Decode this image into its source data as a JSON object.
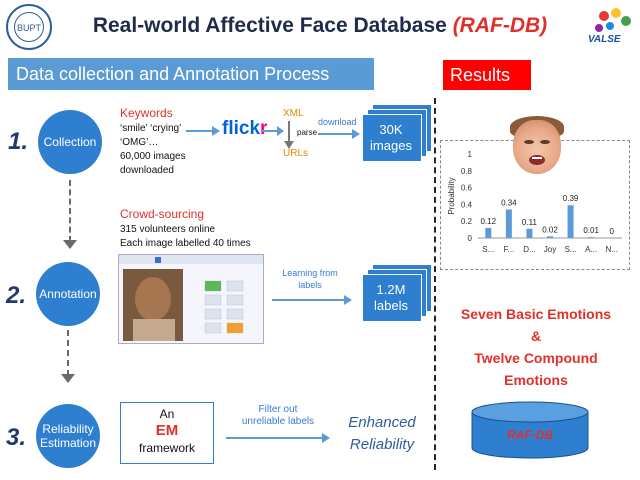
{
  "header": {
    "title_main": "Real-world Affective Face Database ",
    "title_highlight": "(RAF-DB)",
    "logo_left_text": "BUPT",
    "logo_right_text": "VALSE"
  },
  "left_bar": {
    "label": "Data collection and Annotation Process"
  },
  "right_bar": {
    "label": "Results"
  },
  "steps": [
    {
      "number": "1.",
      "circle": "Collection"
    },
    {
      "number": "2.",
      "circle": "Annotation"
    },
    {
      "number": "3.",
      "circle_line1": "Reliability",
      "circle_line2": "Estimation"
    }
  ],
  "collection": {
    "keywords_title": "Keywords",
    "keywords_line1": "‘smile’ ‘crying’",
    "keywords_line2": "‘OMG’…",
    "images_line1": "60,000 images",
    "images_line2": "downloaded",
    "flickr_a": "flick",
    "flickr_b": "r",
    "xml": "XML",
    "parse": "parse",
    "urls": "URLs",
    "download": "download",
    "stack_line1": "30K",
    "stack_line2": "images"
  },
  "annotation": {
    "crowd_title": "Crowd-sourcing",
    "line1": "315 volunteers online",
    "line2": "Each image labelled 40 times",
    "learning_line1": "Learning from",
    "learning_line2": "labels",
    "stack_line1": "1.2M",
    "stack_line2": "labels"
  },
  "reliability": {
    "box_line1": "An",
    "box_line2": "EM",
    "box_line3": "framework",
    "filter_line1": "Filter out",
    "filter_line2": "unreliable labels",
    "enhanced_line1": "Enhanced",
    "enhanced_line2": "Reliability"
  },
  "results": {
    "line1": "Seven Basic Emotions",
    "line2": "&",
    "line3": "Twelve Compound",
    "line4": "Emotions",
    "db_label": "RAF-DB"
  },
  "colors": {
    "circle_blue": "#2f7fd0",
    "bar_blue": "#5b9bd5",
    "results_red": "#ff0000",
    "highlight_red": "#e0302a"
  },
  "chart_data": {
    "type": "bar",
    "categories": [
      "S...",
      "F...",
      "D...",
      "Joy",
      "S...",
      "A...",
      "N..."
    ],
    "values": [
      0.12,
      0.34,
      0.11,
      0.02,
      0.39,
      0.01,
      0
    ],
    "value_labels": [
      "0.12",
      "0.34",
      "0.11",
      "0.02",
      "0.39",
      "0.01",
      "0"
    ],
    "ylabel": "Probability",
    "ylim": [
      0,
      1
    ],
    "yticks": [
      "0",
      "0.2",
      "0.4",
      "0.6",
      "0.8",
      "1"
    ],
    "grid": false,
    "bar_color": "#5b9bd5"
  }
}
